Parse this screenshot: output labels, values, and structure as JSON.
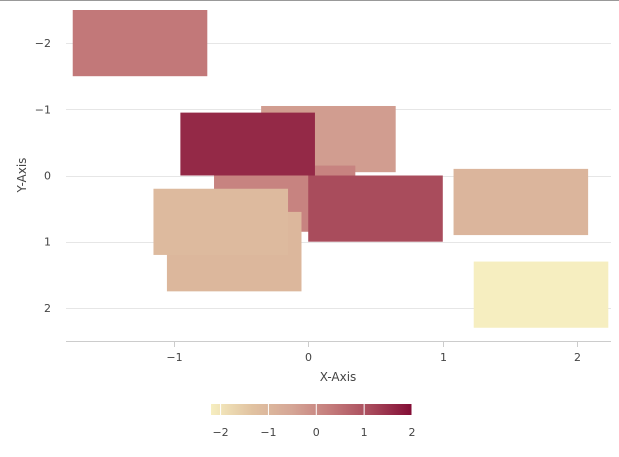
{
  "chart_data": {
    "type": "heatmap",
    "title": "",
    "xlabel": "X-Axis",
    "ylabel": "Y-Axis",
    "xlim": [
      -1.8,
      2.25
    ],
    "ylim": [
      -2.5,
      2.5
    ],
    "y_reversed": true,
    "x_ticks": [
      -1,
      0,
      1,
      2
    ],
    "x_tick_labels": [
      "−1",
      "0",
      "1",
      "2"
    ],
    "y_ticks": [
      -2,
      -1,
      0,
      1,
      2
    ],
    "y_tick_labels": [
      "−2",
      "−1",
      "0",
      "1",
      "2"
    ],
    "grid": {
      "horizontal": true,
      "vertical": false
    },
    "color_scale": {
      "min": -2.2,
      "max": 2.0,
      "stops": [
        "#f6eec0",
        "#e1c3a1",
        "#d5a696",
        "#c37a7a",
        "#a7485a",
        "#820c35"
      ]
    },
    "legend": {
      "placement": "bottom",
      "ticks": [
        -2,
        -1,
        0,
        1,
        2
      ],
      "tick_labels": [
        "−2",
        "−1",
        "0",
        "1",
        "2"
      ]
    },
    "cells": [
      {
        "x0": -1.75,
        "x1": -0.75,
        "y0": -2.5,
        "y1": -1.5,
        "value": 0.35
      },
      {
        "x0": -0.35,
        "x1": 0.65,
        "y0": -1.05,
        "y1": -0.05,
        "value": -0.35
      },
      {
        "x0": -0.7,
        "x1": 0.35,
        "y0": -0.15,
        "y1": 0.85,
        "value": 0.15
      },
      {
        "x0": -1.05,
        "x1": -0.05,
        "y0": 0.55,
        "y1": 1.75,
        "value": -1.0
      },
      {
        "x0": -1.15,
        "x1": -0.15,
        "y0": 0.2,
        "y1": 1.2,
        "value": -1.1
      },
      {
        "x0": -0.95,
        "x1": 0.05,
        "y0": -0.95,
        "y1": 0.0,
        "value": 1.6
      },
      {
        "x0": 0.0,
        "x1": 1.0,
        "y0": 0.0,
        "y1": 1.0,
        "value": 1.1
      },
      {
        "x0": 1.08,
        "x1": 2.08,
        "y0": -0.1,
        "y1": 0.9,
        "value": -0.95
      },
      {
        "x0": 1.23,
        "x1": 2.23,
        "y0": 1.3,
        "y1": 2.3,
        "value": -2.2
      }
    ]
  }
}
